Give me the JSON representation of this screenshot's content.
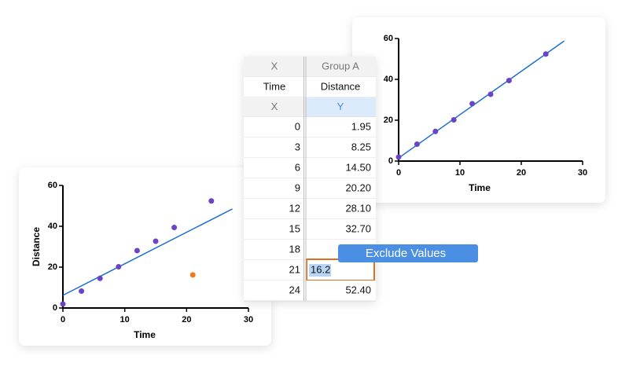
{
  "chart_data": [
    {
      "type": "scatter",
      "x_label": "Time",
      "y_label": "Distance",
      "xlim": [
        0,
        30
      ],
      "xticks": [
        0,
        10,
        20,
        30
      ],
      "ylim": [
        0,
        60
      ],
      "yticks": [
        0,
        20,
        40,
        60
      ],
      "series": [
        {
          "x": [
            0,
            3,
            6,
            9,
            12,
            15,
            18,
            24
          ],
          "values": [
            1.95,
            8.25,
            14.5,
            20.2,
            28.1,
            32.7,
            39.4,
            52.4
          ],
          "color": "#6a44c8"
        },
        {
          "x": [
            21
          ],
          "values": [
            16.2
          ],
          "color": "#f07a1a"
        },
        {
          "kind": "line",
          "x": [
            0,
            27.4
          ],
          "values": [
            6.2,
            48.5
          ],
          "color": "#1f6fd1"
        }
      ]
    },
    {
      "type": "scatter",
      "x_label": "Time",
      "xlim": [
        0,
        30
      ],
      "xticks": [
        0,
        10,
        20,
        30
      ],
      "ylim": [
        0,
        60
      ],
      "yticks": [
        0,
        20,
        40,
        60
      ],
      "series": [
        {
          "x": [
            0,
            3,
            6,
            9,
            12,
            15,
            18,
            24
          ],
          "values": [
            1.95,
            8.25,
            14.5,
            20.2,
            28.1,
            32.7,
            39.4,
            52.4
          ],
          "color": "#6a44c8"
        },
        {
          "kind": "line",
          "x": [
            0,
            27
          ],
          "values": [
            1.5,
            58.8
          ],
          "color": "#1f6fd1"
        }
      ]
    }
  ],
  "table": {
    "rows": [
      [
        "X",
        "Group A"
      ],
      [
        "Time",
        "Distance"
      ],
      [
        "X",
        "Y"
      ],
      [
        "0",
        "1.95"
      ],
      [
        "3",
        "8.25"
      ],
      [
        "6",
        "14.50"
      ],
      [
        "9",
        "20.20"
      ],
      [
        "12",
        "28.10"
      ],
      [
        "15",
        "32.70"
      ],
      [
        "18",
        null
      ],
      [
        "21",
        "16.2"
      ],
      [
        "24",
        "52.40"
      ]
    ]
  },
  "menu": {
    "label": "Exclude Values"
  }
}
